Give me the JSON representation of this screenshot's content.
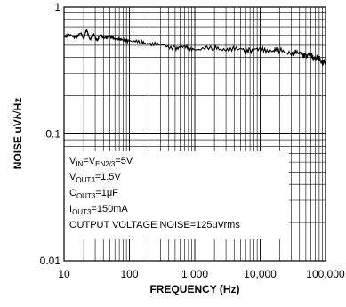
{
  "chart_data": {
    "type": "line",
    "xlabel": "FREQUENCY (Hz)",
    "ylabel": "NOISE uV/√Hz",
    "x_scale": "log",
    "y_scale": "log",
    "xlim": [
      10,
      100000
    ],
    "ylim": [
      0.01,
      1
    ],
    "x_ticks": [
      "10",
      "100",
      "1,000",
      "10,000",
      "100,000"
    ],
    "y_ticks": [
      "1",
      "0.1",
      "0.01"
    ],
    "grid": true,
    "annotations": {
      "vin": {
        "a": "V",
        "a_sub": "IN",
        "b": "=V",
        "b_sub": "EN2/3",
        "c": "=5V"
      },
      "vout": {
        "a": "V",
        "a_sub": "OUT3",
        "c": "=1.5V"
      },
      "cout": {
        "a": "C",
        "a_sub": "OUT3",
        "c": "=1μF"
      },
      "iout": {
        "a": "I",
        "a_sub": "OUT3",
        "c": "=150mA"
      },
      "noise": "OUTPUT VOLTAGE NOISE=125uVrms"
    },
    "series": [
      {
        "x": [
          10,
          12,
          15,
          18,
          20,
          22,
          25,
          28,
          32,
          36,
          40,
          45,
          50,
          60,
          70,
          80,
          100,
          150,
          200,
          300,
          500,
          700,
          1000,
          2000,
          3000,
          5000,
          7000,
          10000,
          15000,
          20000,
          30000,
          40000,
          50000,
          60000,
          70000,
          80000,
          90000,
          100000
        ],
        "y": [
          0.59,
          0.6,
          0.58,
          0.62,
          0.57,
          0.66,
          0.56,
          0.61,
          0.55,
          0.6,
          0.58,
          0.57,
          0.6,
          0.55,
          0.57,
          0.54,
          0.55,
          0.52,
          0.52,
          0.5,
          0.48,
          0.48,
          0.47,
          0.47,
          0.47,
          0.46,
          0.46,
          0.46,
          0.46,
          0.45,
          0.44,
          0.43,
          0.42,
          0.41,
          0.4,
          0.39,
          0.37,
          0.36
        ]
      }
    ]
  }
}
